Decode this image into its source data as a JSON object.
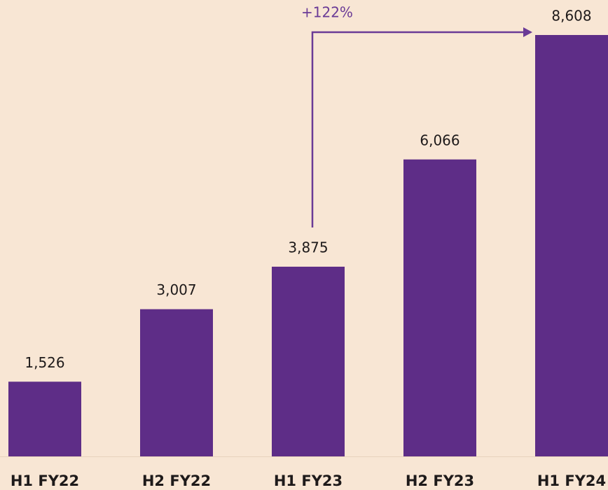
{
  "chart_data": {
    "type": "bar",
    "categories": [
      "H1 FY22",
      "H2 FY22",
      "H1 FY23",
      "H2 FY23",
      "H1 FY24"
    ],
    "values": [
      1526,
      3007,
      3875,
      6066,
      8608
    ],
    "value_labels": [
      "1,526",
      "3,007",
      "3,875",
      "6,066",
      "8,608"
    ],
    "color": "#5e2d87",
    "annotation": {
      "text": "+122%",
      "from": 2,
      "to": 4,
      "color": "#6a3a96"
    }
  }
}
